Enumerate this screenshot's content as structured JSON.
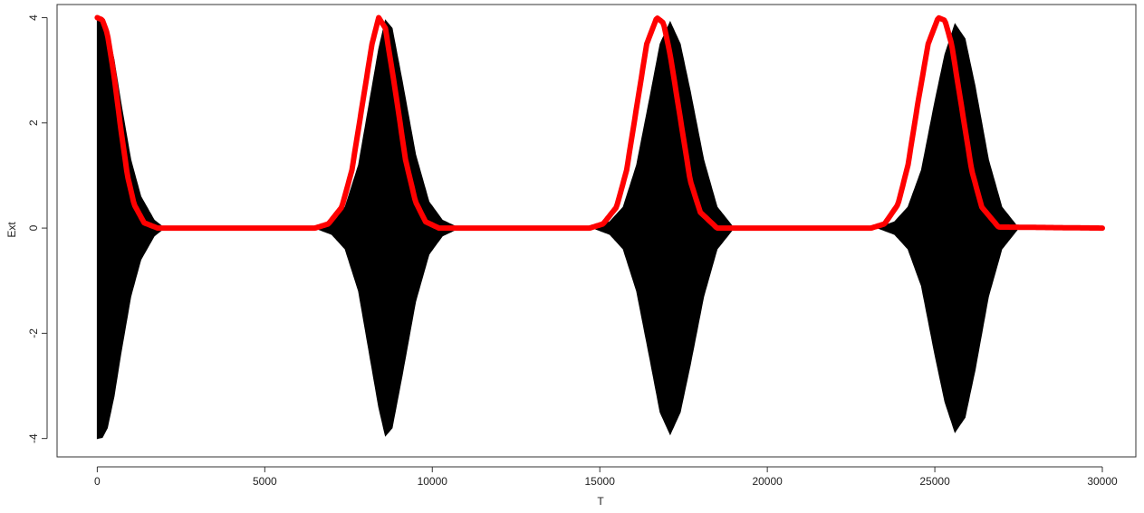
{
  "chart_data": {
    "type": "line",
    "title": "",
    "xlabel": "T",
    "ylabel": "Ext",
    "xlim": [
      -1200,
      31000
    ],
    "ylim": [
      -4.35,
      4.25
    ],
    "xticks": [
      0,
      5000,
      10000,
      15000,
      20000,
      25000,
      30000
    ],
    "xtick_labels": [
      "0",
      "5000",
      "10000",
      "15000",
      "20000",
      "25000",
      "30000"
    ],
    "yticks": [
      -4,
      -2,
      0,
      2,
      4
    ],
    "ytick_labels": [
      "-4",
      "-2",
      "0",
      "2",
      "4"
    ],
    "grid": false,
    "legend": "none",
    "series": [
      {
        "style": "filled-oscillation",
        "color": "#000000",
        "x": [
          0,
          150,
          300,
          500,
          700,
          1000,
          1300,
          1700,
          2000,
          6500,
          7000,
          7400,
          7800,
          8100,
          8400,
          8600,
          8800,
          9100,
          9500,
          9900,
          10300,
          10800,
          14800,
          15300,
          15700,
          16100,
          16500,
          16800,
          17100,
          17400,
          17700,
          18100,
          18500,
          19000,
          23300,
          23800,
          24200,
          24600,
          25000,
          25300,
          25600,
          25900,
          26200,
          26600,
          27000,
          27500,
          30000
        ],
        "amplitude": [
          4.0,
          3.98,
          3.8,
          3.2,
          2.4,
          1.3,
          0.6,
          0.15,
          0.0,
          0.0,
          0.12,
          0.4,
          1.2,
          2.3,
          3.4,
          3.95,
          3.8,
          2.8,
          1.4,
          0.5,
          0.15,
          0.0,
          0.0,
          0.12,
          0.4,
          1.2,
          2.5,
          3.5,
          3.92,
          3.5,
          2.6,
          1.3,
          0.4,
          0.0,
          0.0,
          0.12,
          0.4,
          1.1,
          2.4,
          3.3,
          3.88,
          3.6,
          2.7,
          1.3,
          0.4,
          0.0,
          0.0
        ]
      },
      {
        "style": "thick-line",
        "color": "#ff0000",
        "x": [
          0,
          150,
          300,
          500,
          700,
          900,
          1100,
          1400,
          1800,
          6500,
          6900,
          7300,
          7600,
          7900,
          8200,
          8400,
          8600,
          8900,
          9200,
          9500,
          9800,
          10200,
          14700,
          15100,
          15500,
          15800,
          16100,
          16400,
          16700,
          16900,
          17100,
          17400,
          17700,
          18000,
          18500,
          23100,
          23500,
          23900,
          24200,
          24500,
          24800,
          25100,
          25300,
          25500,
          25800,
          26100,
          26400,
          26900,
          30000
        ],
        "y": [
          4.0,
          3.96,
          3.7,
          2.9,
          1.9,
          1.0,
          0.45,
          0.1,
          0.0,
          0.0,
          0.08,
          0.4,
          1.1,
          2.3,
          3.5,
          4.0,
          3.8,
          2.6,
          1.3,
          0.5,
          0.12,
          0.0,
          0.0,
          0.08,
          0.4,
          1.1,
          2.3,
          3.5,
          4.0,
          3.9,
          3.3,
          2.1,
          0.9,
          0.3,
          0.0,
          0.0,
          0.08,
          0.45,
          1.2,
          2.4,
          3.5,
          4.0,
          3.95,
          3.5,
          2.3,
          1.1,
          0.4,
          0.02,
          0.0
        ]
      }
    ]
  }
}
